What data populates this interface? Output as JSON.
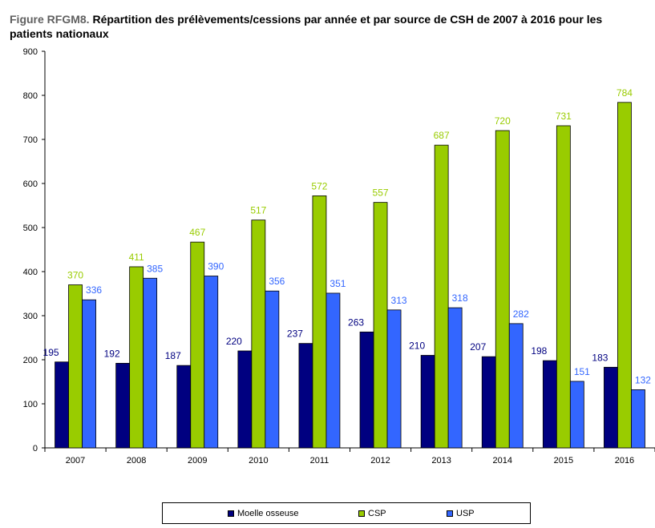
{
  "title": {
    "figure": "Figure RFGM8.",
    "text": "Répartition des prélèvements/cessions par année et par source de CSH de 2007 à 2016 pour les patients nationaux"
  },
  "chart_data": {
    "type": "bar",
    "title": "Figure RFGM8. Répartition des prélèvements/cessions par année et par source de CSH de 2007 à 2016 pour les patients nationaux",
    "xlabel": "",
    "ylabel": "",
    "ylim": [
      0,
      900
    ],
    "yticks": [
      0,
      100,
      200,
      300,
      400,
      500,
      600,
      700,
      800,
      900
    ],
    "grid": false,
    "legend_position": "bottom",
    "categories": [
      "2007",
      "2008",
      "2009",
      "2010",
      "2011",
      "2012",
      "2013",
      "2014",
      "2015",
      "2016"
    ],
    "series": [
      {
        "name": "Moelle osseuse",
        "color": "#000080",
        "label_color": "#000080",
        "values": [
          195,
          192,
          187,
          220,
          237,
          263,
          210,
          207,
          198,
          183
        ]
      },
      {
        "name": "CSP",
        "color": "#99cc00",
        "label_color": "#99cc00",
        "values": [
          370,
          411,
          467,
          517,
          572,
          557,
          687,
          720,
          731,
          784
        ]
      },
      {
        "name": "USP",
        "color": "#3366ff",
        "label_color": "#3366ff",
        "values": [
          336,
          385,
          390,
          356,
          351,
          313,
          318,
          282,
          151,
          132
        ]
      }
    ]
  }
}
